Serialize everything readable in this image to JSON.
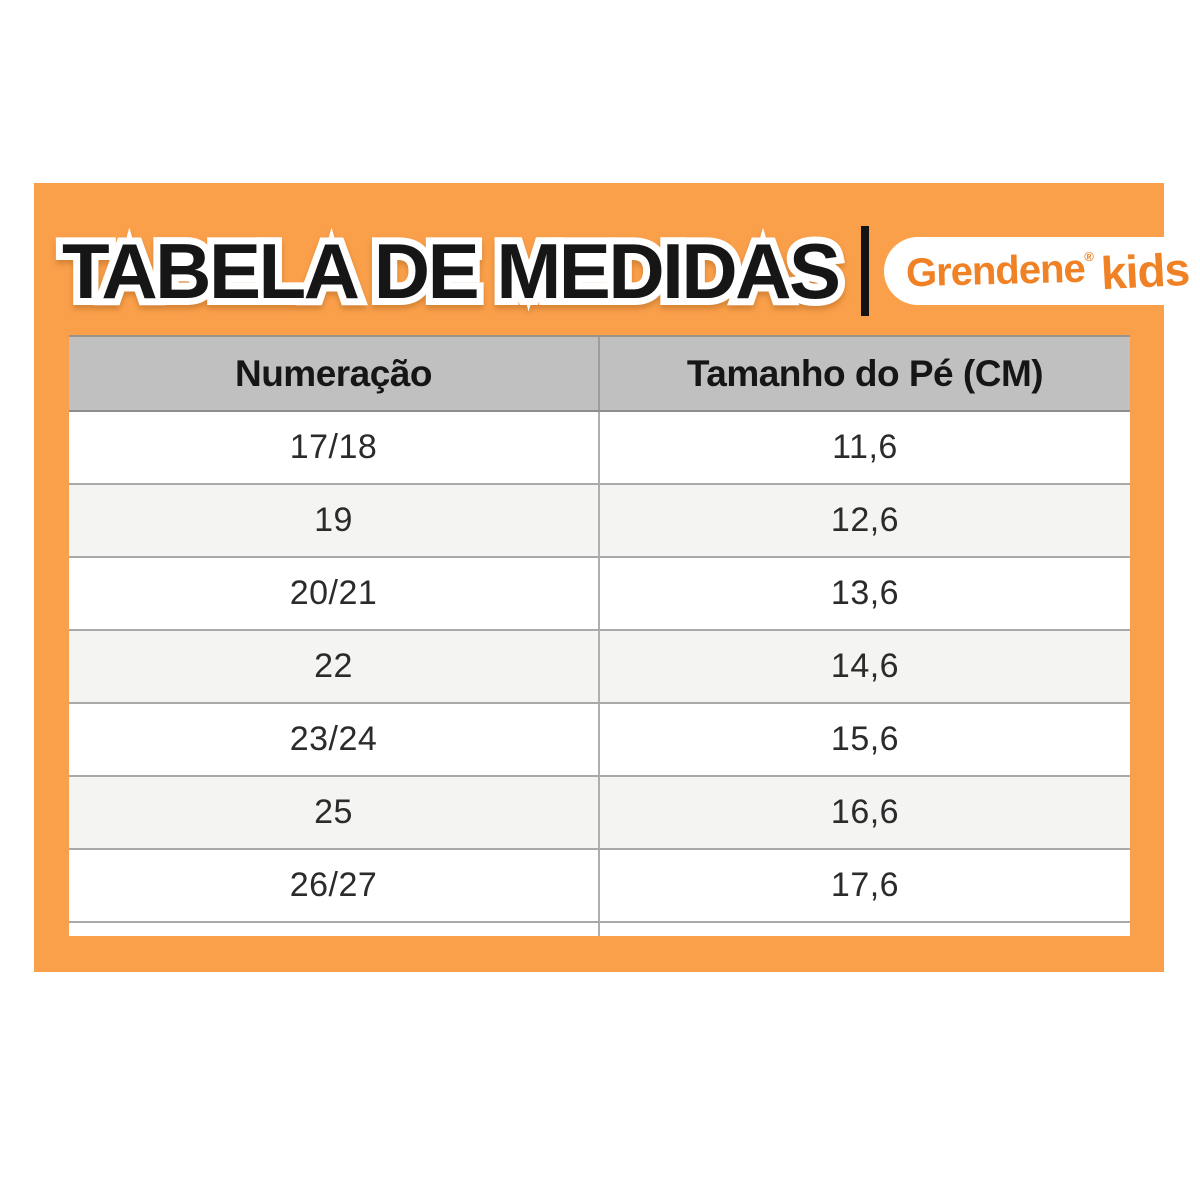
{
  "colors": {
    "page_bg": "#ffffff",
    "card_orange": "#fba04a",
    "logo_orange": "#f08125",
    "title_black": "#161616",
    "header_gray": "#c1c0c0",
    "row_white": "#ffffff",
    "row_alt_gray": "#f4f4f3",
    "grid_line": "#a9a9a9"
  },
  "header": {
    "title": "TABELA DE MEDIDAS",
    "brand_name": "Grendene",
    "brand_reg": "®",
    "brand_suffix": "kids"
  },
  "table": {
    "columns": [
      "Numeração",
      "Tamanho do Pé (CM)"
    ],
    "rows": [
      {
        "size": "17/18",
        "foot_cm": "11,6"
      },
      {
        "size": "19",
        "foot_cm": "12,6"
      },
      {
        "size": "20/21",
        "foot_cm": "13,6"
      },
      {
        "size": "22",
        "foot_cm": "14,6"
      },
      {
        "size": "23/24",
        "foot_cm": "15,6"
      },
      {
        "size": "25",
        "foot_cm": "16,6"
      },
      {
        "size": "26/27",
        "foot_cm": "17,6"
      }
    ]
  },
  "chart_data": {
    "type": "table",
    "title": "TABELA DE MEDIDAS",
    "columns": [
      "Numeração",
      "Tamanho do Pé (CM)"
    ],
    "rows": [
      [
        "17/18",
        "11,6"
      ],
      [
        "19",
        "12,6"
      ],
      [
        "20/21",
        "13,6"
      ],
      [
        "22",
        "14,6"
      ],
      [
        "23/24",
        "15,6"
      ],
      [
        "25",
        "16,6"
      ],
      [
        "26/27",
        "17,6"
      ]
    ]
  }
}
